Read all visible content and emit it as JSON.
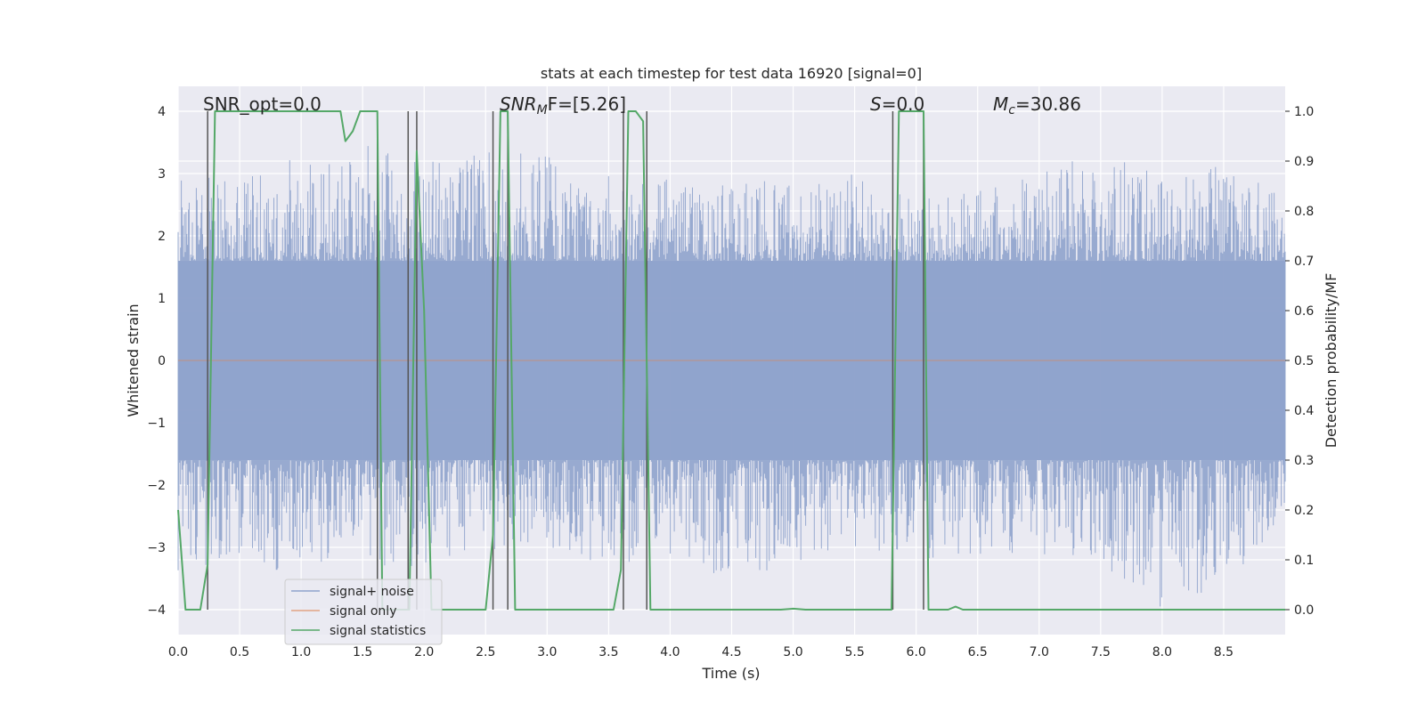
{
  "chart_data": {
    "type": "line",
    "title": "stats at each timestep for test data 16920 [signal=0]",
    "xlabel": "Time (s)",
    "ylabel_left": "Whitened strain",
    "ylabel_right": "Detection probability/MF",
    "xlim": [
      0.0,
      9.0
    ],
    "ylim_left": [
      -4.4,
      4.4
    ],
    "ylim_right": [
      -0.05,
      1.05
    ],
    "x_ticks": [
      0.0,
      0.5,
      1.0,
      1.5,
      2.0,
      2.5,
      3.0,
      3.5,
      4.0,
      4.5,
      5.0,
      5.5,
      6.0,
      6.5,
      7.0,
      7.5,
      8.0,
      8.5
    ],
    "x_tick_labels": [
      "0.0",
      "0.5",
      "1.0",
      "1.5",
      "2.0",
      "2.5",
      "3.0",
      "3.5",
      "4.0",
      "4.5",
      "5.0",
      "5.5",
      "6.0",
      "6.5",
      "7.0",
      "7.5",
      "8.0",
      "8.5"
    ],
    "y_left_ticks": [
      -4,
      -3,
      -2,
      -1,
      0,
      1,
      2,
      3,
      4
    ],
    "y_left_tick_labels": [
      "−4",
      "−3",
      "−2",
      "−1",
      "0",
      "1",
      "2",
      "3",
      "4"
    ],
    "y_right_ticks": [
      0.0,
      0.1,
      0.2,
      0.3,
      0.4,
      0.5,
      0.6,
      0.7,
      0.8,
      0.9,
      1.0
    ],
    "y_right_tick_labels": [
      "0.0",
      "0.1",
      "0.2",
      "0.3",
      "0.4",
      "0.5",
      "0.6",
      "0.7",
      "0.8",
      "0.9",
      "1.0"
    ],
    "grid": true,
    "legend_position": "lower-left",
    "annotations": {
      "snr_opt": "SNR_opt=0.0",
      "snr_mf_sym": "SNR",
      "snr_mf_sub": "M",
      "snr_mf_rest": "F=[5.26]",
      "s_sym": "S",
      "s_rest": "=0.0",
      "mc_sym": "M",
      "mc_sub": "c",
      "mc_rest": "=30.86"
    },
    "series": [
      {
        "name": "signal+ noise",
        "axis": "left",
        "color": "#8fa3cc",
        "style": "dense noise (approx. amplitude ±1.6 core, peaks to ±4)",
        "envelope": {
          "x": [
            0.0,
            0.5,
            1.0,
            1.5,
            2.0,
            2.5,
            3.0,
            3.5,
            4.0,
            4.5,
            5.0,
            5.5,
            6.0,
            6.5,
            7.0,
            7.5,
            8.0,
            8.5,
            9.0
          ],
          "upper": [
            3.1,
            2.9,
            3.3,
            3.5,
            3.2,
            3.4,
            3.3,
            3.0,
            2.9,
            2.8,
            3.0,
            3.0,
            2.6,
            2.8,
            3.1,
            3.3,
            3.0,
            3.2,
            2.6
          ],
          "lower": [
            -3.4,
            -3.2,
            -3.5,
            -3.3,
            -3.4,
            -3.2,
            -3.0,
            -3.3,
            -3.2,
            -3.5,
            -3.3,
            -3.0,
            -3.2,
            -3.1,
            -3.2,
            -3.3,
            -4.0,
            -3.6,
            -2.6
          ]
        }
      },
      {
        "name": "signal only",
        "axis": "left",
        "color": "#dd8452",
        "x": [
          0.0,
          9.0
        ],
        "y": [
          0.0,
          0.0
        ]
      },
      {
        "name": "signal statistics",
        "axis": "right",
        "color": "#55a868",
        "x": [
          0.0,
          0.06,
          0.18,
          0.24,
          0.3,
          0.4,
          0.6,
          0.8,
          1.0,
          1.2,
          1.32,
          1.36,
          1.42,
          1.48,
          1.56,
          1.62,
          1.66,
          1.74,
          1.82,
          1.88,
          1.94,
          2.0,
          2.06,
          2.12,
          2.2,
          2.3,
          2.4,
          2.5,
          2.56,
          2.62,
          2.68,
          2.74,
          2.8,
          3.0,
          3.2,
          3.4,
          3.54,
          3.6,
          3.66,
          3.72,
          3.78,
          3.84,
          3.9,
          4.0,
          4.5,
          4.9,
          5.0,
          5.1,
          5.5,
          5.8,
          5.86,
          5.9,
          6.0,
          6.06,
          6.1,
          6.2,
          6.26,
          6.32,
          6.38,
          6.5,
          7.0,
          8.0,
          9.0
        ],
        "y": [
          0.2,
          0.0,
          0.0,
          0.09,
          1.0,
          1.0,
          1.0,
          1.0,
          1.0,
          1.0,
          1.0,
          0.94,
          0.96,
          1.0,
          1.0,
          1.0,
          0.0,
          0.0,
          0.0,
          0.0,
          0.92,
          0.6,
          0.0,
          0.0,
          0.0,
          0.0,
          0.0,
          0.0,
          0.15,
          1.0,
          1.0,
          0.0,
          0.0,
          0.0,
          0.0,
          0.0,
          0.0,
          0.08,
          1.0,
          1.0,
          0.98,
          0.0,
          0.0,
          0.0,
          0.0,
          0.0,
          0.002,
          0.0,
          0.0,
          0.0,
          1.0,
          1.0,
          1.0,
          1.0,
          0.0,
          0.0,
          0.0,
          0.006,
          0.0,
          0.0,
          0.0,
          0.0,
          0.0
        ]
      }
    ],
    "vertical_markers": {
      "color": "#555555",
      "x": [
        0.24,
        1.62,
        1.87,
        1.94,
        2.56,
        2.68,
        3.62,
        3.81,
        5.81,
        6.06
      ]
    }
  }
}
